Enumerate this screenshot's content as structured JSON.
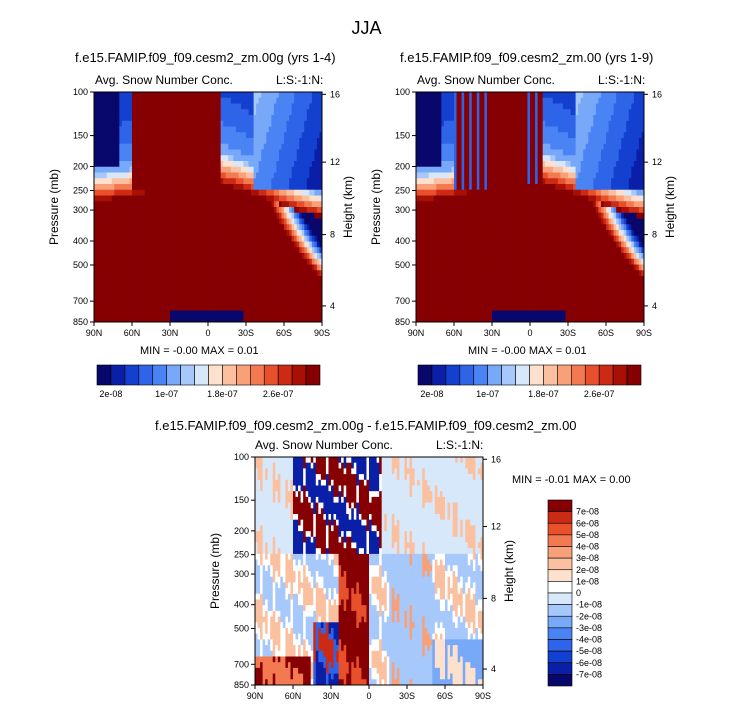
{
  "main_title": "JJA",
  "panels": [
    {
      "title": "f.e15.FAMIP.f09_f09.cesm2_zm.00g (yrs 1-4)",
      "left_label": "Avg. Snow Number Conc.",
      "right_label": "L:S:-1:N:",
      "min_max": "MIN =  -0.00   MAX =  0.01"
    },
    {
      "title": "f.e15.FAMIP.f09_f09.cesm2_zm.00 (yrs 1-9)",
      "left_label": "Avg. Snow Number Conc.",
      "right_label": "L:S:-1:N:",
      "min_max": "MIN =  -0.00   MAX =  0.01"
    },
    {
      "title": "f.e15.FAMIP.f09_f09.cesm2_zm.00g - f.e15.FAMIP.f09_f09.cesm2_zm.00",
      "left_label": "Avg. Snow Number Conc.",
      "right_label": "L:S:-1:N:",
      "min_max": "MIN =  -0.01   MAX =  0.00"
    }
  ],
  "axes": {
    "ylabel": "Pressure (mb)",
    "ylabel_right": "Height (km)",
    "x_ticks": [
      "90N",
      "60N",
      "30N",
      "0",
      "30S",
      "60S",
      "90S"
    ],
    "y_ticks": [
      "100",
      "150",
      "200",
      "250",
      "300",
      "400",
      "500",
      "700",
      "850"
    ],
    "height_ticks": [
      "16",
      "12",
      "8",
      "4"
    ]
  },
  "colorbar_top": {
    "tick_labels": [
      "2e-08",
      "1e-07",
      "1.8e-07",
      "2.6e-07"
    ],
    "colors": [
      "#08076b",
      "#0a1fa8",
      "#1440d0",
      "#2f64e8",
      "#4a84f4",
      "#78a8f8",
      "#a6c8fa",
      "#d8e8fb",
      "#fde0cd",
      "#fbc0a0",
      "#f8a078",
      "#f37a50",
      "#e8502c",
      "#cc2a14",
      "#a81006",
      "#860003"
    ]
  },
  "colorbar_diff": {
    "labels": [
      "7e-08",
      "6e-08",
      "5e-08",
      "4e-08",
      "3e-08",
      "2e-08",
      "1e-08",
      "0",
      "-1e-08",
      "-2e-08",
      "-3e-08",
      "-4e-08",
      "-5e-08",
      "-6e-08",
      "-7e-08"
    ],
    "colors": [
      "#860003",
      "#cc2a14",
      "#e8502c",
      "#f37a50",
      "#f8a078",
      "#fbc0a0",
      "#fde0cd",
      "#ffffff",
      "#d8e8fb",
      "#a6c8fa",
      "#78a8f8",
      "#4a84f4",
      "#2f64e8",
      "#1440d0",
      "#0a1fa8",
      "#08076b"
    ]
  },
  "chart_data": [
    {
      "type": "heatmap",
      "title": "f.e15.FAMIP.f09_f09.cesm2_zm.00g (yrs 1-4)",
      "xlabel": "",
      "ylabel": "Pressure (mb)",
      "ylabel_right": "Height (km)",
      "xlim": [
        "90N",
        "90S"
      ],
      "ylim": [
        850,
        100
      ],
      "y_scale": "log",
      "note_visible": "L:S:-1:N:"
    },
    {
      "type": "heatmap",
      "title": "f.e15.FAMIP.f09_f09.cesm2_zm.00 (yrs 1-9)",
      "xlabel": "",
      "ylabel": "Pressure (mb)",
      "ylabel_right": "Height (km)",
      "xlim": [
        "90N",
        "90S"
      ],
      "ylim": [
        850,
        100
      ],
      "y_scale": "log"
    },
    {
      "type": "heatmap",
      "title": "f.e15.FAMIP.f09_f09.cesm2_zm.00g - f.e15.FAMIP.f09_f09.cesm2_zm.00",
      "xlabel": "",
      "ylabel": "Pressure (mb)",
      "ylabel_right": "Height (km)",
      "xlim": [
        "90N",
        "90S"
      ],
      "ylim": [
        850,
        100
      ],
      "y_scale": "log"
    }
  ]
}
